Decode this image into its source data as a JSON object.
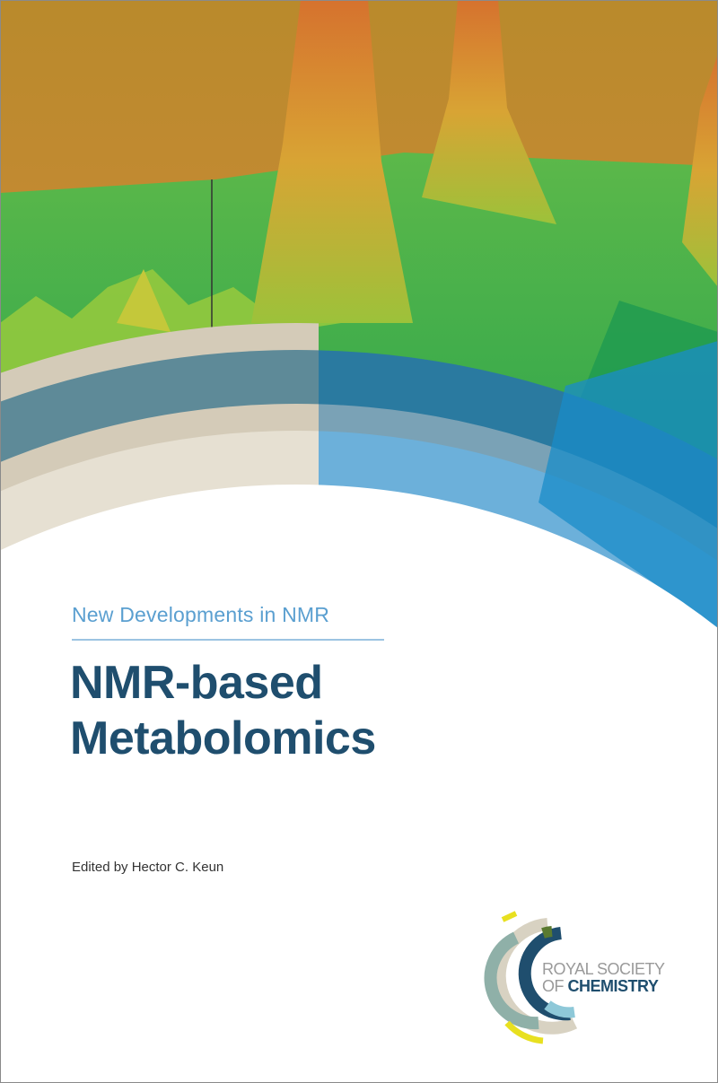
{
  "cover": {
    "series": "New Developments in NMR",
    "title_line1": "NMR-based",
    "title_line2": "Metabolomics",
    "editor": "Edited by Hector C. Keun"
  },
  "publisher": {
    "line1": "ROYAL SOCIETY",
    "line2_prefix": "OF ",
    "line2_bold": "CHEMISTRY"
  },
  "colors": {
    "sky": "#c98a2a",
    "green": "#3fae4a",
    "title": "#1f4e6e",
    "series": "#5a9fd0"
  }
}
